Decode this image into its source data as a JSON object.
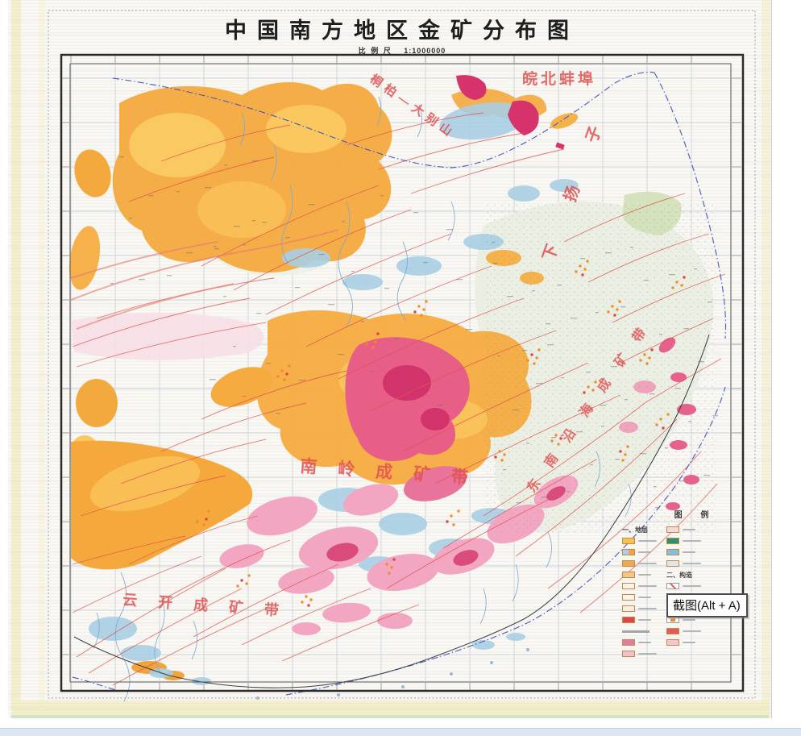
{
  "title": {
    "text": "中国南方地区金矿分布图",
    "scale_label": "比 例 尺",
    "scale_value": "1:1000000"
  },
  "map_labels": {
    "wanbei_bengbu": "皖北蚌埠",
    "tongbai_dabieshan": "桐柏—大别山",
    "xia_yangzi": "下扬子",
    "nanling_belt": "南岭成矿带",
    "se_coastal_belt": "东南沿海成矿带",
    "yunkai_belt": "云开成矿带"
  },
  "legend": {
    "title": "图 例",
    "left_items": [
      {
        "header": "一、地层"
      },
      {
        "c": "#f6c44e"
      },
      {
        "c": "#a9cfe4",
        "c2": "#f0a24a"
      },
      {
        "c": "#f2a94e",
        "hatch": true
      },
      {
        "c": "#f5c689"
      },
      {
        "c": "#fdf5e8"
      },
      {
        "c": "#fdf5e8"
      },
      {
        "c": "#fbeedd"
      },
      {
        "c": "#e04545"
      },
      {
        "header": ""
      },
      {
        "c": "#e47d9d",
        "hatch": true
      },
      {
        "c": "#f3bdca"
      }
    ],
    "right_items": [
      {
        "c": "#f5d9da"
      },
      {
        "c": "#2f9168"
      },
      {
        "c": "#85bedb",
        "hatch": true
      },
      {
        "c": "#dfe6ea"
      },
      {
        "header": "二、构造"
      },
      {
        "line": true
      },
      {
        "line": true
      },
      {
        "header": "三、矿产"
      },
      {
        "sq": true
      },
      {
        "c": "#e25b5b"
      },
      {
        "c": "#f1c7ce"
      }
    ]
  },
  "tooltip": {
    "text": "截图(Alt + A)"
  },
  "palette": {
    "orange": "#f4a93e",
    "yellow": "#fcd36a",
    "pink": "#f2a6c2",
    "magenta": "#d6336c",
    "blue_patch": "#a9cfe4",
    "fault_red": "#e2544f",
    "boundary_blue": "#4353c4",
    "label_red": "#e05050",
    "pale_green": "#ebefe3"
  }
}
